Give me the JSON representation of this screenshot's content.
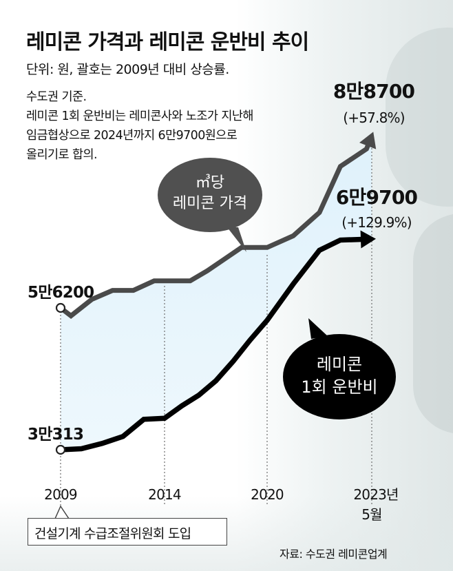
{
  "header": {
    "title": "레미콘 가격과 레미콘 운반비 추이",
    "unit_note": "단위: 원, 괄호는 2009년 대비 상승률."
  },
  "notes": [
    "수도권 기준.",
    "레미콘 1회 운반비는 레미콘사와 노조가 지난해",
    "임금협상으로 2024년까지 6만9700원으로",
    "올리기로 합의."
  ],
  "chart_data": {
    "type": "line",
    "x_labels": [
      "2009",
      "2014",
      "2020",
      "2023년",
      "5월"
    ],
    "series": [
      {
        "name": "㎥당 레미콘 가격",
        "color": "#4a4a4a",
        "start_label": "5만6200",
        "end_label": "8만8700",
        "end_change": "(+57.8%)",
        "points": [
          [
            2009.0,
            56200
          ],
          [
            2009.5,
            54700
          ],
          [
            2010.5,
            57800
          ],
          [
            2011.5,
            59500
          ],
          [
            2012.5,
            59500
          ],
          [
            2013.5,
            61300
          ],
          [
            2014.5,
            61300
          ],
          [
            2015.5,
            61300
          ],
          [
            2016.5,
            63200
          ],
          [
            2017.5,
            65400
          ],
          [
            2018.5,
            67600
          ],
          [
            2019.5,
            67600
          ],
          [
            2020.0,
            67600
          ],
          [
            2021.0,
            69800
          ],
          [
            2022.0,
            74200
          ],
          [
            2022.8,
            82900
          ],
          [
            2023.8,
            86200
          ],
          [
            2024.0,
            88700
          ]
        ]
      },
      {
        "name": "레미콘 1회 운반비",
        "color": "#000000",
        "start_label": "3만313",
        "end_label": "6만9700",
        "end_change": "(+129.9%)",
        "points": [
          [
            2009.0,
            30313
          ],
          [
            2010.0,
            30500
          ],
          [
            2011.0,
            31500
          ],
          [
            2012.0,
            32800
          ],
          [
            2013.0,
            36000
          ],
          [
            2014.0,
            36200
          ],
          [
            2015.0,
            38500
          ],
          [
            2016.0,
            40500
          ],
          [
            2017.0,
            43200
          ],
          [
            2018.0,
            46800
          ],
          [
            2019.0,
            50800
          ],
          [
            2020.0,
            54500
          ],
          [
            2021.0,
            61300
          ],
          [
            2022.0,
            67600
          ],
          [
            2022.8,
            69500
          ],
          [
            2024.0,
            69700
          ]
        ]
      }
    ],
    "bubbles": {
      "price": "㎥당\n레미콘 가격",
      "haul": "레미콘\n1회 운반비"
    },
    "annotation": "건설기계 수급조절위원회 도입"
  },
  "source": "자료: 수도권 레미콘업계"
}
